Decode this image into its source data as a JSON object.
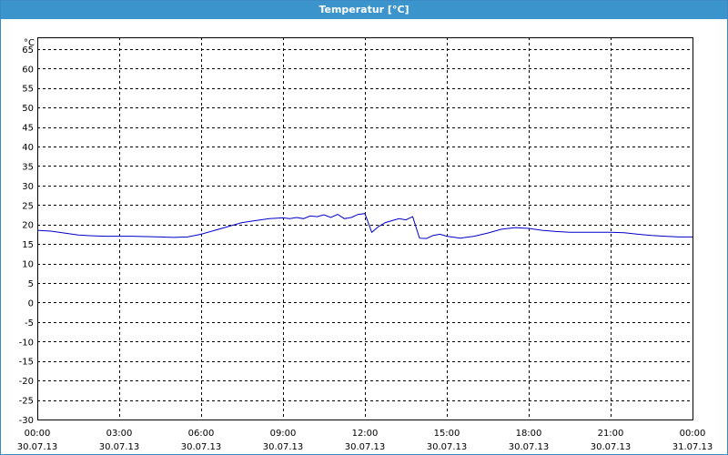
{
  "window": {
    "title": "Temperatur [°C]"
  },
  "chart_data": {
    "type": "line",
    "title": "Temperatur [°C]",
    "unit_label": "°C",
    "xlabel": "",
    "ylabel": "",
    "ylim": [
      -30,
      68
    ],
    "xlim": [
      "30.07.13 00:00",
      "31.07.13 00:00"
    ],
    "grid": true,
    "colors": {
      "line": "#0000cc",
      "grid": "#000000",
      "titlebar": "#3b95cc"
    },
    "y_ticks": [
      65,
      60,
      55,
      50,
      45,
      40,
      35,
      30,
      25,
      20,
      15,
      10,
      5,
      0,
      -5,
      -10,
      -15,
      -20,
      -25,
      -30
    ],
    "x_ticks": [
      {
        "time": "00:00",
        "date": "30.07.13",
        "hour": 0
      },
      {
        "time": "03:00",
        "date": "30.07.13",
        "hour": 3
      },
      {
        "time": "06:00",
        "date": "30.07.13",
        "hour": 6
      },
      {
        "time": "09:00",
        "date": "30.07.13",
        "hour": 9
      },
      {
        "time": "12:00",
        "date": "30.07.13",
        "hour": 12
      },
      {
        "time": "15:00",
        "date": "30.07.13",
        "hour": 15
      },
      {
        "time": "18:00",
        "date": "30.07.13",
        "hour": 18
      },
      {
        "time": "21:00",
        "date": "30.07.13",
        "hour": 21
      },
      {
        "time": "00:00",
        "date": "31.07.13",
        "hour": 24
      }
    ],
    "series": [
      {
        "x_hours": [
          0,
          0.5,
          1,
          1.5,
          2,
          2.5,
          3,
          3.5,
          4,
          4.5,
          5,
          5.5,
          6,
          6.5,
          7,
          7.5,
          8,
          8.5,
          9,
          9.25,
          9.5,
          9.75,
          10,
          10.25,
          10.5,
          10.75,
          11,
          11.25,
          11.5,
          11.75,
          12,
          12.25,
          12.5,
          12.75,
          13,
          13.25,
          13.5,
          13.75,
          14,
          14.25,
          14.5,
          14.75,
          15,
          15.5,
          16,
          16.5,
          17,
          17.5,
          18,
          18.5,
          19,
          19.5,
          20,
          20.5,
          21,
          21.5,
          22,
          22.5,
          23,
          23.5,
          24
        ],
        "values": [
          18.5,
          18.3,
          17.8,
          17.3,
          17.1,
          17.0,
          17.0,
          17.0,
          16.9,
          16.8,
          16.7,
          16.8,
          17.5,
          18.5,
          19.5,
          20.5,
          21.0,
          21.5,
          21.7,
          21.5,
          21.8,
          21.5,
          22.2,
          22.0,
          22.5,
          21.8,
          22.6,
          21.5,
          21.8,
          22.6,
          22.8,
          18.0,
          19.5,
          20.5,
          21.0,
          21.5,
          21.2,
          22.0,
          16.5,
          16.4,
          17.2,
          17.5,
          17.0,
          16.5,
          17.0,
          17.8,
          18.8,
          19.2,
          19.0,
          18.5,
          18.2,
          18.0,
          18.0,
          18.0,
          18.0,
          17.9,
          17.5,
          17.2,
          17.0,
          16.8,
          16.8
        ]
      }
    ]
  }
}
